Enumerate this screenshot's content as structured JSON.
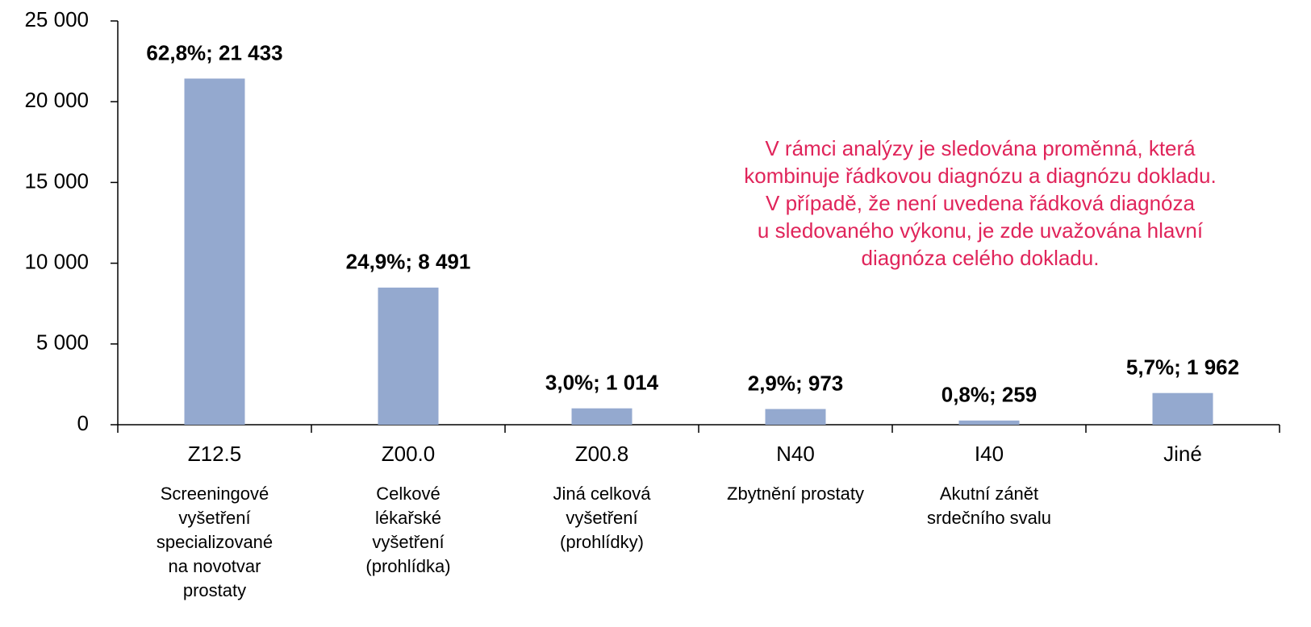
{
  "chart_data": {
    "type": "bar",
    "categories": [
      "Z12.5",
      "Z00.0",
      "Z00.8",
      "N40",
      "I40",
      "Jiné"
    ],
    "descriptions": [
      [
        "Screeningové",
        "vyšetření",
        "specializované",
        "na novotvar",
        "prostaty"
      ],
      [
        "Celkové",
        "lékařské",
        "vyšetření",
        "(prohlídka)"
      ],
      [
        "Jiná celková",
        "vyšetření",
        "(prohlídky)"
      ],
      [
        "Zbytnění prostaty"
      ],
      [
        "Akutní zánět",
        "srdečního svalu"
      ],
      []
    ],
    "values": [
      21433,
      8491,
      1014,
      973,
      259,
      1962
    ],
    "value_labels": [
      "62,8%; 21 433",
      "24,9%; 8 491",
      "3,0%; 1 014",
      "2,9%; 973",
      "0,8%; 259",
      "5,7%; 1 962"
    ],
    "color": "#94a9cf",
    "ylim": [
      0,
      25000
    ],
    "yticks": [
      0,
      {
        "value": 5000,
        "label": "5 000"
      },
      {
        "value": 10000,
        "label": "10 000"
      },
      {
        "value": 15000,
        "label": "15 000"
      },
      {
        "value": 20000,
        "label": "20 000"
      },
      {
        "value": 25000,
        "label": "25 000"
      }
    ],
    "annotation": [
      "V rámci analýzy je sledována proměnná, která",
      "kombinuje řádkovou diagnózu a diagnózu dokladu.",
      "V případě, že není uvedena řádková diagnóza",
      "u sledovaného výkonu, je zde uvažována hlavní",
      "diagnóza celého dokladu."
    ],
    "annotation_color": "#e0245a"
  }
}
